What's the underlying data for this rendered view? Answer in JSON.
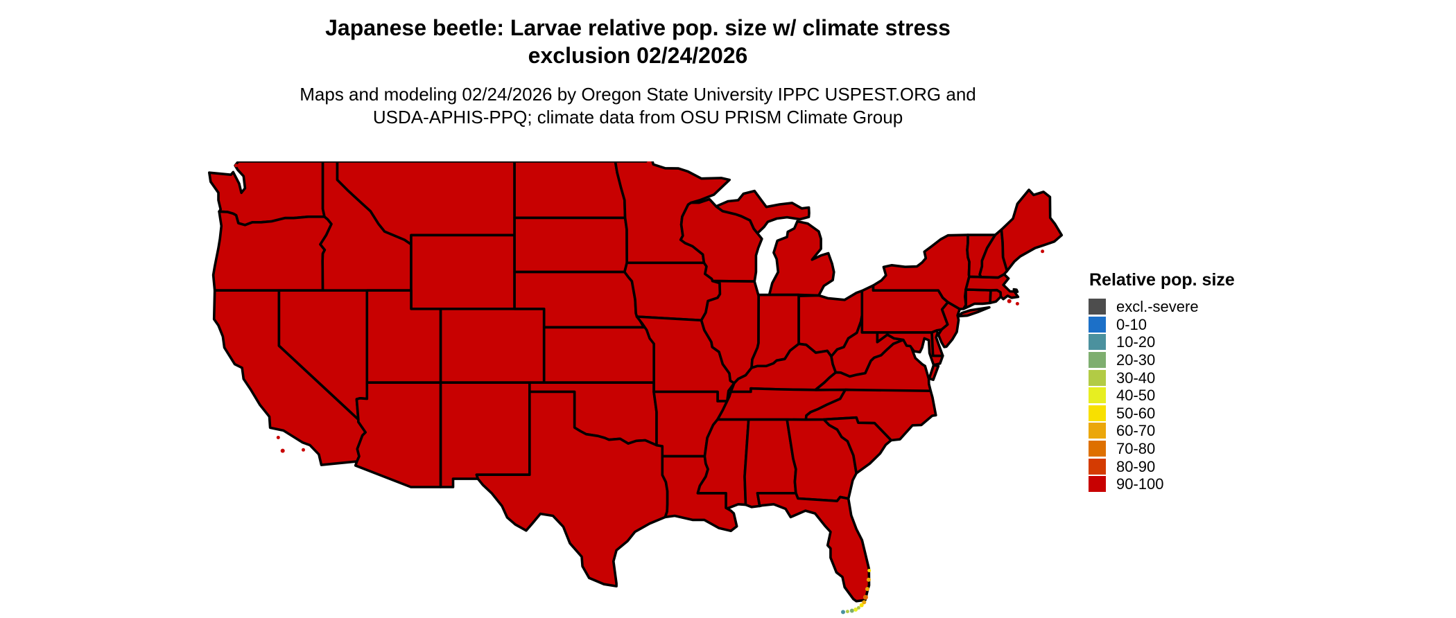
{
  "title": {
    "line1": "Japanese beetle: Larvae relative pop. size w/ climate stress",
    "line2": "exclusion 02/24/2026"
  },
  "subtitle": {
    "line1": "Maps and modeling 02/24/2026 by Oregon State University IPPC USPEST.ORG and",
    "line2": "USDA-APHIS-PPQ; climate data from OSU PRISM Climate Group"
  },
  "legend": {
    "title": "Relative pop. size",
    "items": [
      {
        "label": "excl.-severe",
        "color": "#4d4d4d"
      },
      {
        "label": "0-10",
        "color": "#1c70c8"
      },
      {
        "label": "10-20",
        "color": "#4b919e"
      },
      {
        "label": "20-30",
        "color": "#7eae6f"
      },
      {
        "label": "30-40",
        "color": "#b2cb45"
      },
      {
        "label": "40-50",
        "color": "#e7ee21"
      },
      {
        "label": "50-60",
        "color": "#f8e000"
      },
      {
        "label": "60-70",
        "color": "#eba70b"
      },
      {
        "label": "70-80",
        "color": "#de7000"
      },
      {
        "label": "80-90",
        "color": "#d43b02"
      },
      {
        "label": "90-100",
        "color": "#c80101"
      }
    ]
  },
  "map": {
    "region": "contiguous United States",
    "dominant_category": "90-100",
    "fill_color": "#c80101",
    "border_color": "#000000",
    "water_color": "#ffffff"
  }
}
